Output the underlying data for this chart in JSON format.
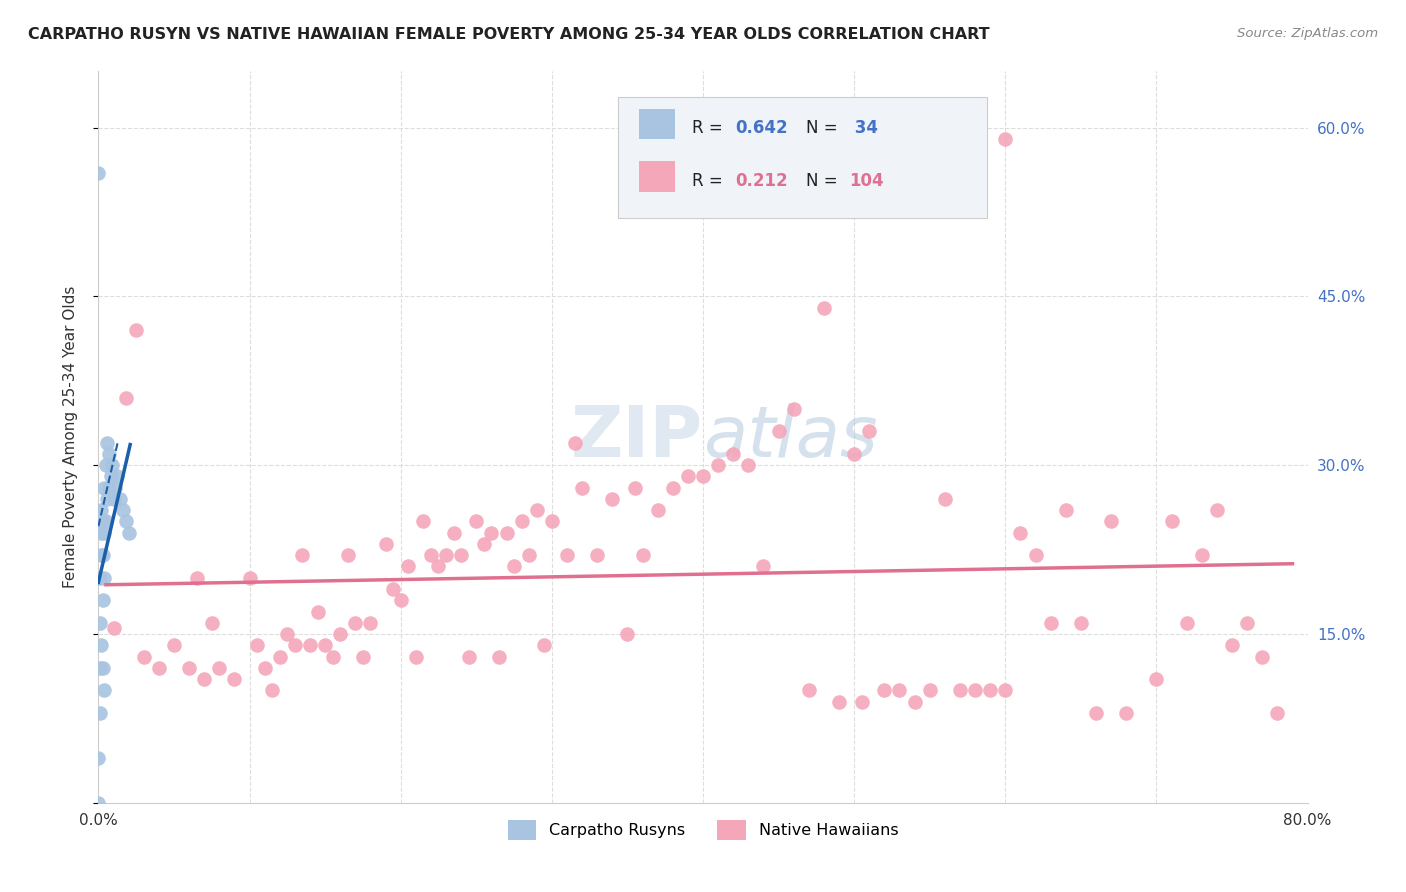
{
  "title": "CARPATHO RUSYN VS NATIVE HAWAIIAN FEMALE POVERTY AMONG 25-34 YEAR OLDS CORRELATION CHART",
  "source": "Source: ZipAtlas.com",
  "ylabel": "Female Poverty Among 25-34 Year Olds",
  "xlim": [
    0.0,
    0.8
  ],
  "ylim": [
    0.0,
    0.65
  ],
  "carpatho_color": "#a8c4e0",
  "hawaiian_color": "#f4a7b9",
  "blue_line_color": "#1a5fa8",
  "pink_line_color": "#e07090",
  "carpatho_R": 0.642,
  "carpatho_N": 34,
  "hawaiian_R": 0.212,
  "hawaiian_N": 104,
  "legend_label_carpatho": "Carpatho Rusyns",
  "legend_label_hawaiian": "Native Hawaiians",
  "carpatho_x": [
    0.0,
    0.0,
    0.001,
    0.001,
    0.001,
    0.002,
    0.002,
    0.002,
    0.003,
    0.003,
    0.003,
    0.004,
    0.004,
    0.004,
    0.005,
    0.005,
    0.006,
    0.006,
    0.007,
    0.007,
    0.008,
    0.009,
    0.01,
    0.011,
    0.012,
    0.014,
    0.016,
    0.018,
    0.02,
    0.0,
    0.001,
    0.002,
    0.003,
    0.004
  ],
  "carpatho_y": [
    0.0,
    0.04,
    0.08,
    0.12,
    0.2,
    0.22,
    0.24,
    0.26,
    0.18,
    0.22,
    0.25,
    0.2,
    0.24,
    0.28,
    0.25,
    0.3,
    0.27,
    0.32,
    0.28,
    0.31,
    0.29,
    0.3,
    0.27,
    0.28,
    0.29,
    0.27,
    0.26,
    0.25,
    0.24,
    0.56,
    0.16,
    0.14,
    0.12,
    0.1
  ],
  "hawaiian_x": [
    0.01,
    0.018,
    0.025,
    0.03,
    0.04,
    0.05,
    0.06,
    0.065,
    0.07,
    0.075,
    0.08,
    0.09,
    0.1,
    0.105,
    0.11,
    0.115,
    0.12,
    0.125,
    0.13,
    0.135,
    0.14,
    0.145,
    0.15,
    0.155,
    0.16,
    0.165,
    0.17,
    0.175,
    0.18,
    0.19,
    0.195,
    0.2,
    0.205,
    0.21,
    0.215,
    0.22,
    0.225,
    0.23,
    0.235,
    0.24,
    0.245,
    0.25,
    0.255,
    0.26,
    0.265,
    0.27,
    0.275,
    0.28,
    0.285,
    0.29,
    0.295,
    0.3,
    0.31,
    0.315,
    0.32,
    0.33,
    0.34,
    0.35,
    0.355,
    0.36,
    0.37,
    0.38,
    0.39,
    0.4,
    0.41,
    0.42,
    0.43,
    0.44,
    0.45,
    0.46,
    0.47,
    0.48,
    0.49,
    0.5,
    0.505,
    0.51,
    0.52,
    0.53,
    0.54,
    0.55,
    0.56,
    0.57,
    0.58,
    0.59,
    0.6,
    0.61,
    0.62,
    0.63,
    0.64,
    0.65,
    0.66,
    0.67,
    0.68,
    0.7,
    0.71,
    0.72,
    0.73,
    0.74,
    0.75,
    0.76,
    0.77,
    0.78,
    0.5,
    0.6
  ],
  "hawaiian_y": [
    0.155,
    0.36,
    0.42,
    0.13,
    0.12,
    0.14,
    0.12,
    0.2,
    0.11,
    0.16,
    0.12,
    0.11,
    0.2,
    0.14,
    0.12,
    0.1,
    0.13,
    0.15,
    0.14,
    0.22,
    0.14,
    0.17,
    0.14,
    0.13,
    0.15,
    0.22,
    0.16,
    0.13,
    0.16,
    0.23,
    0.19,
    0.18,
    0.21,
    0.13,
    0.25,
    0.22,
    0.21,
    0.22,
    0.24,
    0.22,
    0.13,
    0.25,
    0.23,
    0.24,
    0.13,
    0.24,
    0.21,
    0.25,
    0.22,
    0.26,
    0.14,
    0.25,
    0.22,
    0.32,
    0.28,
    0.22,
    0.27,
    0.15,
    0.28,
    0.22,
    0.26,
    0.28,
    0.29,
    0.29,
    0.3,
    0.31,
    0.3,
    0.21,
    0.33,
    0.35,
    0.1,
    0.44,
    0.09,
    0.31,
    0.09,
    0.33,
    0.1,
    0.1,
    0.09,
    0.1,
    0.27,
    0.1,
    0.1,
    0.1,
    0.1,
    0.24,
    0.22,
    0.16,
    0.26,
    0.16,
    0.08,
    0.25,
    0.08,
    0.11,
    0.25,
    0.16,
    0.22,
    0.26,
    0.14,
    0.16,
    0.13,
    0.08,
    0.56,
    0.59
  ]
}
